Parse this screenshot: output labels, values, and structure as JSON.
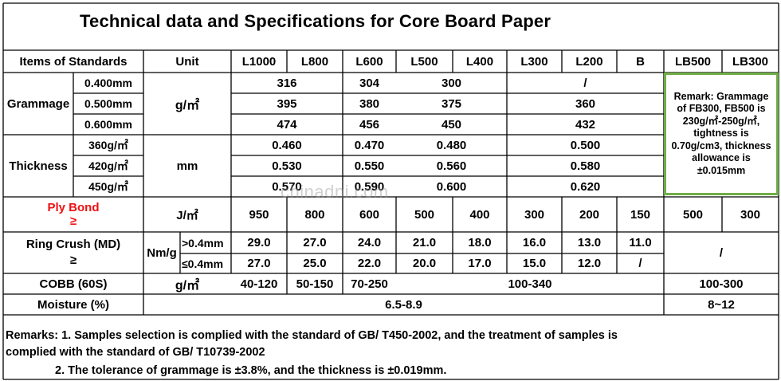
{
  "title": "Technical data and Specifications for Core Board Paper",
  "header": {
    "items": "Items of Standards",
    "unit": "Unit",
    "grades": [
      "L1000",
      "L800",
      "L600",
      "L500",
      "L400",
      "L300",
      "L200",
      "B",
      "LB500",
      "LB300"
    ]
  },
  "grammage": {
    "label": "Grammage",
    "unit": "g/㎡",
    "rows": [
      {
        "sub": "0.400mm",
        "v1": "316",
        "v2": "304",
        "v3": "300",
        "v4": "/"
      },
      {
        "sub": "0.500mm",
        "v1": "395",
        "v2": "380",
        "v3": "375",
        "v4": "360"
      },
      {
        "sub": "0.600mm",
        "v1": "474",
        "v2": "456",
        "v3": "450",
        "v4": "432"
      }
    ]
  },
  "thickness": {
    "label": "Thickness",
    "unit": "mm",
    "rows": [
      {
        "sub": "360g/㎡",
        "v1": "0.460",
        "v2": "0.470",
        "v3": "0.480",
        "v4": "0.500"
      },
      {
        "sub": "420g/㎡",
        "v1": "0.530",
        "v2": "0.550",
        "v3": "0.560",
        "v4": "0.580"
      },
      {
        "sub": "450g/㎡",
        "v1": "0.570",
        "v2": "0.590",
        "v3": "0.600",
        "v4": "0.620"
      }
    ]
  },
  "remark_box": "Remark: Grammage of FB300, FB500 is 230g/㎡-250g/㎡, tightness is 0.70g/cm3, thickness allowance is ±0.015mm",
  "ply_bond": {
    "label": "Ply Bond",
    "symbol": "≥",
    "unit": "J/㎡",
    "values": [
      "950",
      "800",
      "600",
      "500",
      "400",
      "300",
      "200",
      "150",
      "500",
      "300"
    ]
  },
  "ring_crush": {
    "label": "Ring Crush (MD)",
    "symbol": "≥",
    "unit": "Nm/g",
    "rows": [
      {
        "sub": ">0.4mm",
        "values": [
          "29.0",
          "27.0",
          "24.0",
          "21.0",
          "18.0",
          "16.0",
          "13.0",
          "11.0"
        ]
      },
      {
        "sub": "≤0.4mm",
        "values": [
          "27.0",
          "25.0",
          "22.0",
          "20.0",
          "17.0",
          "15.0",
          "12.0",
          "/"
        ]
      }
    ],
    "lb": "/"
  },
  "cobb": {
    "label": "COBB (60S)",
    "unit": "g/㎡",
    "values": [
      "40-120",
      "50-150",
      "70-250",
      "100-340",
      "100-300"
    ]
  },
  "moisture": {
    "label": "Moisture (%)",
    "value": "6.5-8.9",
    "lb": "8~12"
  },
  "remarks": {
    "line1": "Remarks: 1. Samples selection is complied with the standard of GB/ T450-2002, and the treatment of samples is",
    "line2": "complied with the standard of GB/ T10739-2002",
    "line3": "2. The tolerance of grammage is ±3.8%, and the thickness is ±0.019mm."
  },
  "watermark": "chinadni.com"
}
